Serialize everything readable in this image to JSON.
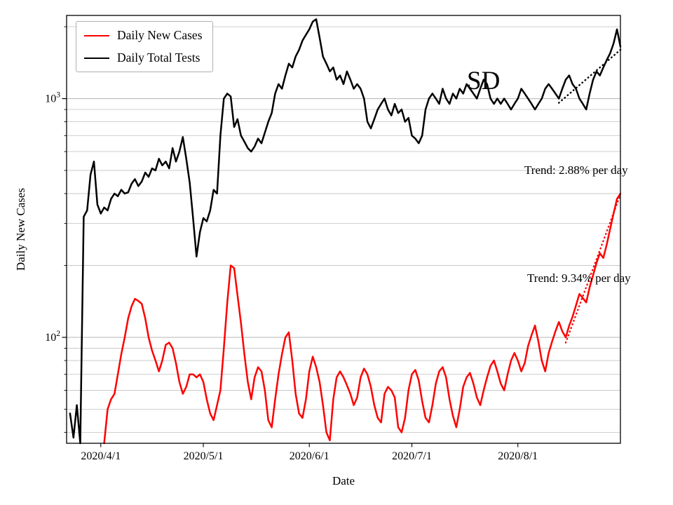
{
  "figure": {
    "background": "#ffffff",
    "axes": {
      "xlabel": "Date",
      "ylabel": "Daily New Cases",
      "frame_color": "#000000",
      "tick_font_px": 16
    },
    "legend": {
      "position": "upper-left",
      "items": [
        {
          "label": "Daily New Cases",
          "color": "#ff0000"
        },
        {
          "label": "Daily Total Tests",
          "color": "#000000"
        }
      ]
    }
  },
  "chart_data": {
    "type": "line",
    "title": "",
    "xlabel": "Date",
    "ylabel": "Daily New Cases",
    "y_scale": "log",
    "x_start_date": "2020-03-22",
    "x_range_days": [
      0,
      162
    ],
    "ylim": [
      36,
      2230
    ],
    "grid": {
      "axis": "y",
      "which": "both",
      "minor_color": "#c9c9c9",
      "major_color": "#b5b5b5"
    },
    "x_ticks": [
      {
        "day": 10,
        "label": "2020/4/1"
      },
      {
        "day": 40,
        "label": "2020/5/1"
      },
      {
        "day": 71,
        "label": "2020/6/1"
      },
      {
        "day": 101,
        "label": "2020/7/1"
      },
      {
        "day": 132,
        "label": "2020/8/1"
      }
    ],
    "y_ticks": [
      {
        "value": 100,
        "base": "10",
        "exp": "2"
      },
      {
        "value": 1000,
        "base": "10",
        "exp": "3"
      }
    ],
    "series": [
      {
        "name": "Daily Total Tests",
        "color": "#000000",
        "start_day": 1,
        "values": [
          48,
          38,
          52,
          36,
          320,
          340,
          480,
          545,
          360,
          330,
          350,
          340,
          380,
          400,
          390,
          415,
          400,
          405,
          440,
          460,
          430,
          450,
          490,
          470,
          510,
          500,
          560,
          525,
          545,
          510,
          620,
          545,
          600,
          690,
          560,
          445,
          316,
          218,
          276,
          316,
          306,
          340,
          415,
          400,
          700,
          1000,
          1050,
          1020,
          760,
          820,
          700,
          660,
          620,
          600,
          630,
          680,
          650,
          720,
          800,
          870,
          1050,
          1150,
          1100,
          1250,
          1400,
          1350,
          1500,
          1600,
          1750,
          1850,
          1950,
          2100,
          2150,
          1800,
          1500,
          1400,
          1300,
          1350,
          1200,
          1250,
          1150,
          1300,
          1200,
          1100,
          1150,
          1100,
          1000,
          800,
          750,
          820,
          900,
          950,
          1000,
          900,
          850,
          950,
          870,
          900,
          800,
          830,
          700,
          680,
          650,
          700,
          900,
          1000,
          1050,
          1000,
          950,
          1100,
          1000,
          950,
          1050,
          1000,
          1100,
          1050,
          1150,
          1100,
          1050,
          1000,
          1100,
          1200,
          1150,
          1000,
          950,
          1000,
          950,
          1000,
          950,
          900,
          950,
          1000,
          1100,
          1050,
          1000,
          950,
          900,
          950,
          1000,
          1100,
          1150,
          1100,
          1050,
          1000,
          1100,
          1200,
          1250,
          1150,
          1100,
          1000,
          950,
          900,
          1050,
          1200,
          1300,
          1250,
          1350,
          1450,
          1550,
          1700,
          1950,
          1650
        ]
      },
      {
        "name": "Daily New Cases",
        "color": "#ff0000",
        "start_day": 11,
        "values": [
          36,
          50,
          55,
          58,
          70,
          85,
          100,
          120,
          135,
          145,
          142,
          138,
          120,
          100,
          88,
          80,
          72,
          80,
          93,
          95,
          90,
          78,
          65,
          58,
          62,
          70,
          70,
          68,
          70,
          65,
          55,
          48,
          45,
          52,
          60,
          90,
          140,
          200,
          195,
          150,
          115,
          85,
          65,
          55,
          68,
          75,
          72,
          60,
          45,
          42,
          55,
          70,
          85,
          100,
          105,
          80,
          58,
          48,
          46,
          55,
          72,
          83,
          75,
          65,
          52,
          40,
          37,
          55,
          68,
          72,
          68,
          63,
          58,
          52,
          56,
          68,
          74,
          70,
          62,
          52,
          46,
          44,
          58,
          62,
          60,
          56,
          42,
          40,
          46,
          60,
          70,
          73,
          66,
          54,
          46,
          44,
          52,
          64,
          72,
          75,
          68,
          55,
          47,
          42,
          50,
          62,
          68,
          71,
          64,
          56,
          52,
          60,
          68,
          76,
          80,
          72,
          64,
          60,
          70,
          80,
          86,
          80,
          72,
          78,
          92,
          102,
          112,
          96,
          80,
          72,
          86,
          96,
          106,
          116,
          106,
          100,
          112,
          122,
          136,
          152,
          146,
          140,
          162,
          182,
          205,
          225,
          215,
          245,
          285,
          330,
          380,
          400
        ]
      }
    ],
    "trend_lines": [
      {
        "series": "Daily Total Tests",
        "color": "#000000",
        "rate_percent_per_day": 2.88,
        "start_day": 144,
        "end_day": 162,
        "start_value": 960
      },
      {
        "series": "Daily New Cases",
        "color": "#ff0000",
        "rate_percent_per_day": 9.34,
        "start_day": 146,
        "end_day": 162,
        "start_value": 95
      }
    ],
    "annotations": [
      {
        "text": "Trend: 2.88% per day",
        "day": 134,
        "value": 500
      },
      {
        "text": "Trend: 9.34% per day",
        "day": 135,
        "value": 178
      },
      {
        "text": "SD",
        "day": 122,
        "value": 1150
      }
    ]
  }
}
